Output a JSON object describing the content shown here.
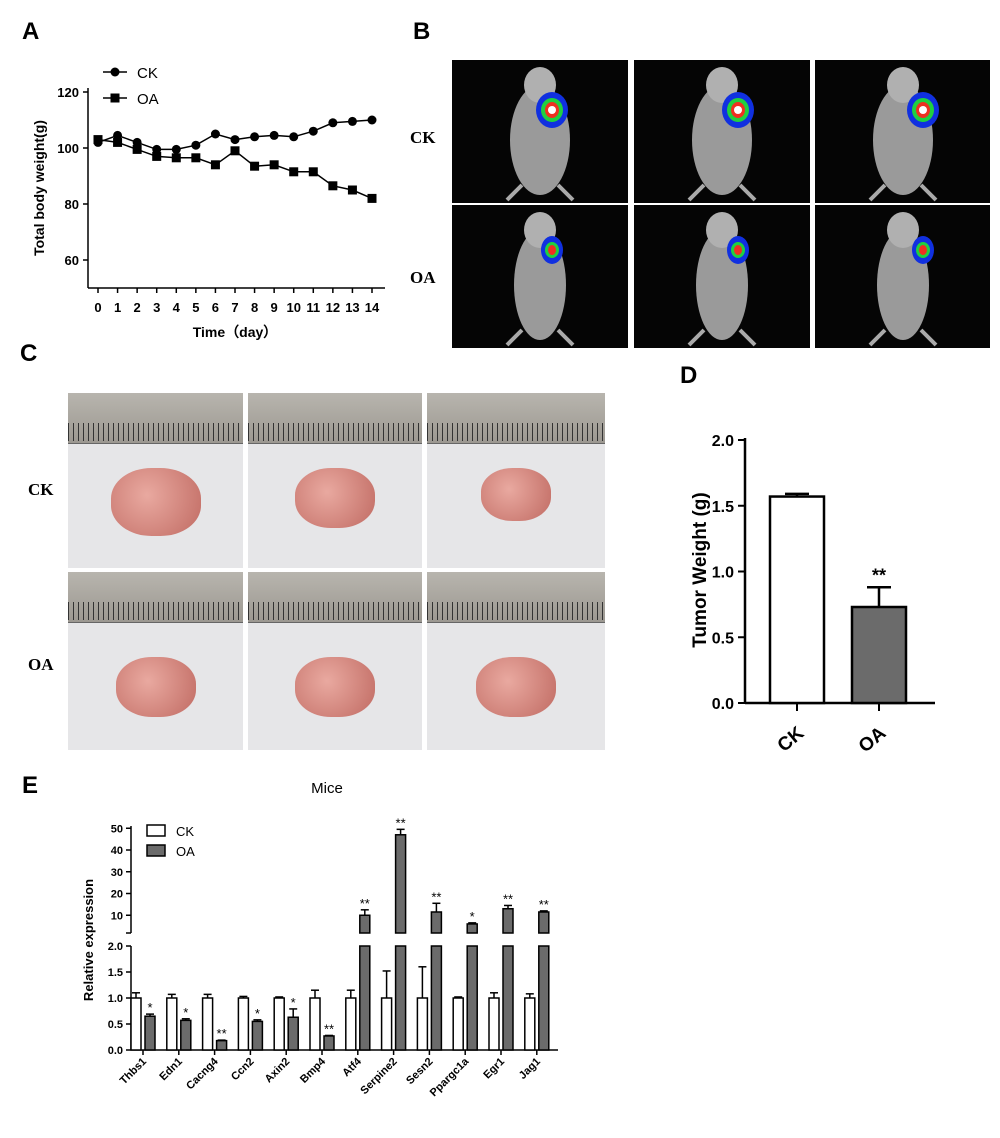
{
  "panels": {
    "a": "A",
    "b": "B",
    "c": "C",
    "d": "D",
    "e": "E"
  },
  "row_labels": {
    "ck": "CK",
    "oa": "OA"
  },
  "chart_data": [
    {
      "id": "A",
      "type": "line",
      "xlabel": "Time（day）",
      "ylabel": "Total body weight(g)",
      "x": [
        0,
        1,
        2,
        3,
        4,
        5,
        6,
        7,
        8,
        9,
        10,
        11,
        12,
        13,
        14
      ],
      "ylim": [
        50,
        120
      ],
      "yticks": [
        60,
        80,
        100,
        120
      ],
      "series": [
        {
          "name": "CK",
          "marker": "circle",
          "values": [
            102,
            104.5,
            102,
            99.5,
            99.5,
            101,
            105,
            103,
            104,
            104.5,
            104,
            106,
            109,
            109.5,
            110
          ]
        },
        {
          "name": "OA",
          "marker": "square",
          "values": [
            103,
            102,
            99.5,
            97,
            96.5,
            96.5,
            94,
            99,
            93.5,
            94,
            91.5,
            91.5,
            86.5,
            85,
            82
          ]
        }
      ],
      "legend": "top-left"
    },
    {
      "id": "D",
      "type": "bar",
      "categories": [
        "CK",
        "OA"
      ],
      "values": [
        1.57,
        0.73
      ],
      "errors": [
        0.02,
        0.15
      ],
      "annotations": [
        "",
        "**"
      ],
      "ylabel": "Tumor Weight (g)",
      "ylim": [
        0,
        2.0
      ],
      "yticks": [
        "0.0",
        "0.5",
        "1.0",
        "1.5",
        "2.0"
      ]
    },
    {
      "id": "E",
      "type": "bar",
      "title": "Mice",
      "ylabel": "Relative expression",
      "categories": [
        "Thbs1",
        "Edn1",
        "Cacng4",
        "Ccn2",
        "Axin2",
        "Bmp4",
        "Atf4",
        "Serpine2",
        "Sesn2",
        "Ppargc1a",
        "Egr1",
        "Jag1"
      ],
      "series": [
        {
          "name": "CK",
          "values": [
            1,
            1,
            1,
            1,
            1,
            1,
            1,
            1,
            1,
            1,
            1,
            1
          ],
          "errors": [
            0.1,
            0.07,
            0.07,
            0.03,
            0.02,
            0.15,
            0.15,
            0.52,
            0.6,
            0.02,
            0.1,
            0.08
          ]
        },
        {
          "name": "OA",
          "values": [
            0.65,
            0.57,
            0.18,
            0.55,
            0.63,
            0.27,
            10,
            47,
            11.5,
            6,
            13,
            11.5
          ],
          "errors": [
            0.04,
            0.03,
            0.01,
            0.03,
            0.16,
            0.01,
            2.5,
            2.5,
            4,
            0.5,
            1.5,
            0.5
          ]
        }
      ],
      "annotations": [
        "*",
        "*",
        "**",
        "*",
        "*",
        "**",
        "**",
        "**",
        "**",
        "*",
        "**",
        "**"
      ],
      "ylim_lower": [
        0,
        2.0
      ],
      "yticks_lower": [
        "0.0",
        "0.5",
        "1.0",
        "1.5",
        "2.0"
      ],
      "ylim_upper": [
        2,
        50
      ],
      "yticks_upper": [
        "10",
        "20",
        "30",
        "40",
        "50"
      ],
      "legend": "top-left"
    }
  ],
  "colors": {
    "oa_bar": "#6b6b6b",
    "ck_bar": "#ffffff",
    "axis": "#000000"
  }
}
